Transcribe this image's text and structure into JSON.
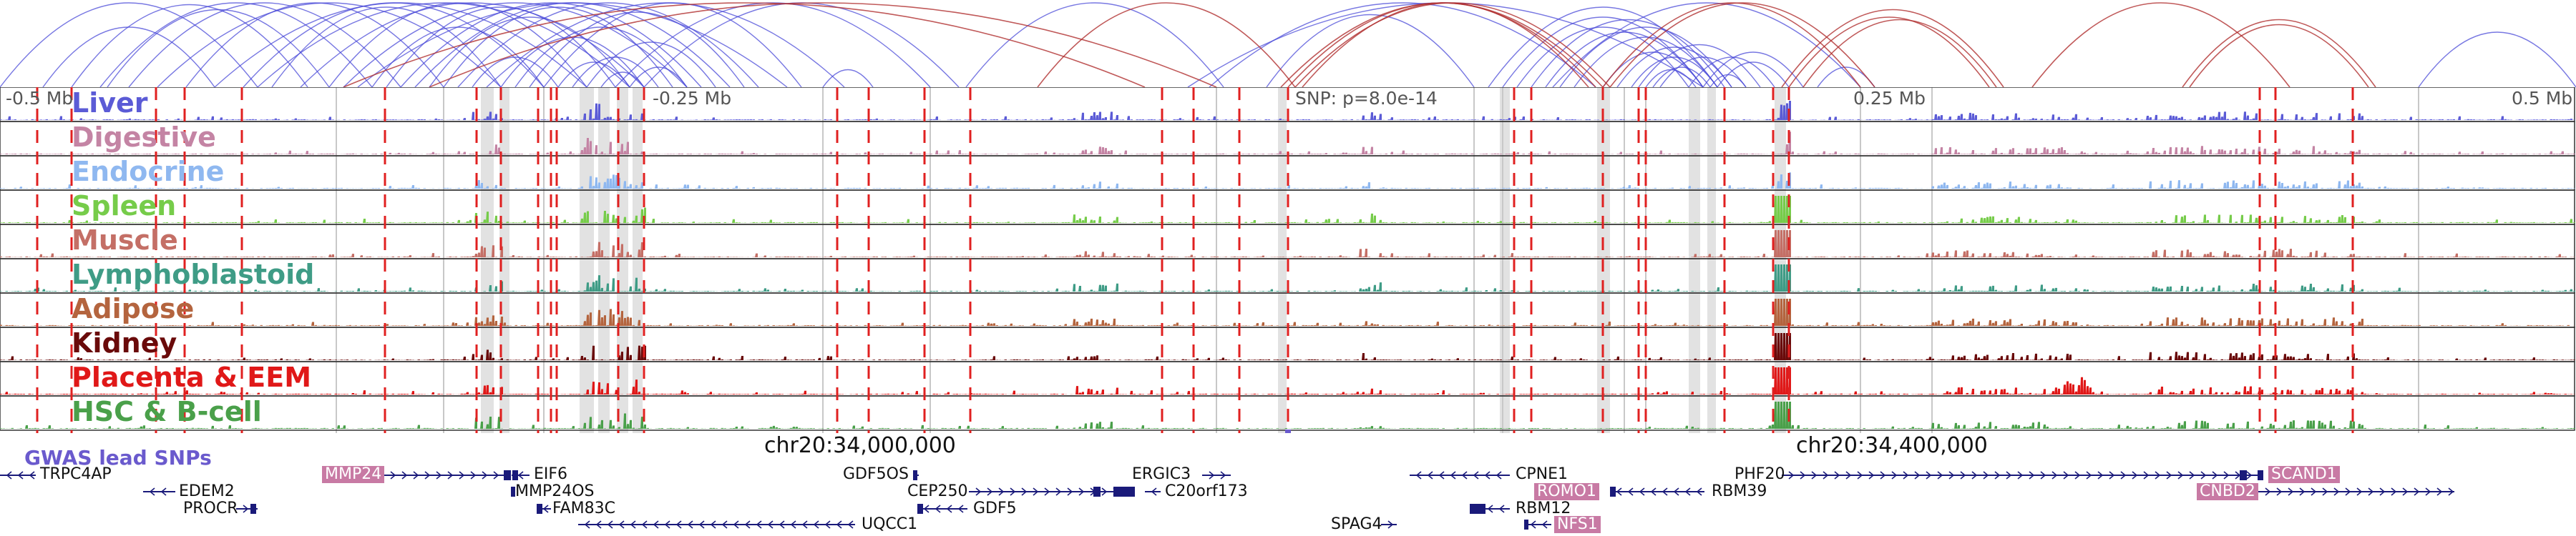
{
  "scale_labels": [
    "-0.5 Mb",
    "-0.25 Mb",
    "SNP: p=8.0e-14",
    "0.25 Mb",
    "0.5 Mb"
  ],
  "tracks": [
    {
      "name": "Liver",
      "color": "#5b5bd6"
    },
    {
      "name": "Digestive",
      "color": "#c484a4"
    },
    {
      "name": "Endocrine",
      "color": "#8fb8f0"
    },
    {
      "name": "Spleen",
      "color": "#76cc4a"
    },
    {
      "name": "Muscle",
      "color": "#c46f66"
    },
    {
      "name": "Lymphoblastoid",
      "color": "#3f9c86"
    },
    {
      "name": "Adipose",
      "color": "#b4643e"
    },
    {
      "name": "Kidney",
      "color": "#6a0a0a"
    },
    {
      "name": "Placenta & EEM",
      "color": "#e01818"
    },
    {
      "name": "HSC & B-cell",
      "color": "#4aa04a"
    }
  ],
  "gwas_label": "GWAS lead SNPs",
  "chr_labels": [
    "chr20:34,000,000",
    "chr20:34,400,000"
  ],
  "genes": [
    {
      "name": "TRPC4AP",
      "highlight": false
    },
    {
      "name": "EDEM2",
      "highlight": false
    },
    {
      "name": "PROCR",
      "highlight": false
    },
    {
      "name": "MMP24",
      "highlight": true
    },
    {
      "name": "EIF6",
      "highlight": false
    },
    {
      "name": "MMP24OS",
      "highlight": false
    },
    {
      "name": "FAM83C",
      "highlight": false
    },
    {
      "name": "UQCC1",
      "highlight": false
    },
    {
      "name": "GDF5OS",
      "highlight": false
    },
    {
      "name": "CEP250",
      "highlight": false
    },
    {
      "name": "GDF5",
      "highlight": false
    },
    {
      "name": "ERGIC3",
      "highlight": false
    },
    {
      "name": "C20orf173",
      "highlight": false
    },
    {
      "name": "SPAG4",
      "highlight": false
    },
    {
      "name": "CPNE1",
      "highlight": false
    },
    {
      "name": "ROMO1",
      "highlight": true
    },
    {
      "name": "RBM12",
      "highlight": false
    },
    {
      "name": "NFS1",
      "highlight": true
    },
    {
      "name": "PHF20",
      "highlight": false
    },
    {
      "name": "RBM39",
      "highlight": false
    },
    {
      "name": "SCAND1",
      "highlight": true
    },
    {
      "name": "CNBD2",
      "highlight": true
    }
  ],
  "colors": {
    "snp_line": "#e02020",
    "highlight_band": "#d8d8d8",
    "arc_blue": "#4a4ad8",
    "arc_red": "#b03030",
    "gene_body": "#1a1a7a",
    "gwas": "#6a5acd",
    "track_border": "#333333"
  }
}
